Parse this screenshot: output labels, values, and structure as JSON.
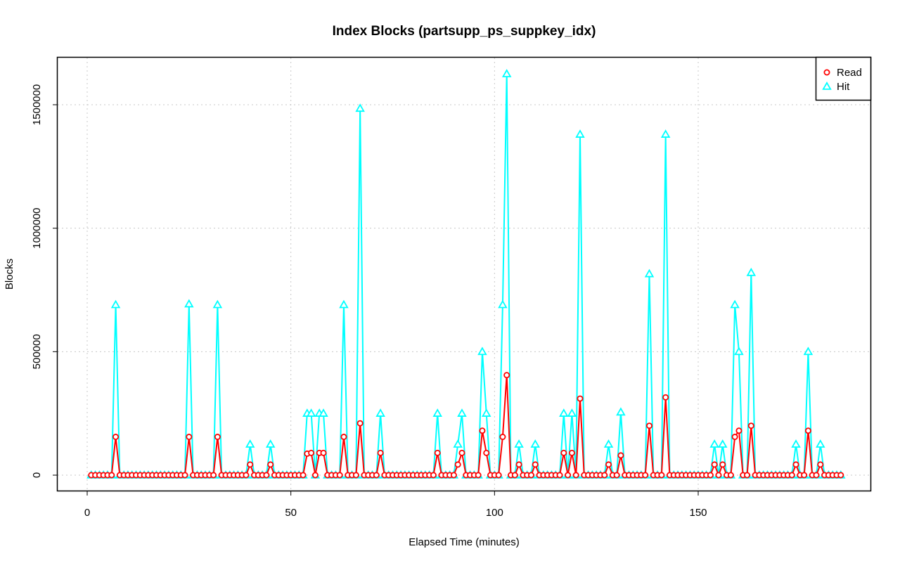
{
  "chart_data": {
    "type": "line",
    "title": "Index Blocks (partsupp_ps_suppkey_idx)",
    "xlabel": "Elapsed Time (minutes)",
    "ylabel": "Blocks",
    "xlim": [
      0,
      185
    ],
    "ylim": [
      0,
      1620000
    ],
    "xticks": [
      0,
      50,
      100,
      150
    ],
    "yticks": [
      0,
      500000,
      1000000,
      1500000
    ],
    "xtick_labels": [
      "0",
      "50",
      "100",
      "150"
    ],
    "ytick_labels": [
      "0",
      "500000",
      "1000000",
      "1500000"
    ],
    "grid": true,
    "legend": {
      "placement": "top-right",
      "entries": [
        {
          "name": "Read",
          "marker": "circle",
          "color": "#ff0000"
        },
        {
          "name": "Hit",
          "marker": "triangle",
          "color": "#00ffff"
        }
      ]
    },
    "x_start": 1,
    "x_end": 185,
    "series": [
      {
        "name": "Read",
        "color": "#ff0000",
        "marker": "circle",
        "default": 0,
        "points": [
          [
            7,
            155000
          ],
          [
            25,
            155000
          ],
          [
            32,
            155000
          ],
          [
            40,
            43000
          ],
          [
            45,
            43000
          ],
          [
            54,
            87000
          ],
          [
            55,
            90000
          ],
          [
            57,
            90000
          ],
          [
            58,
            90000
          ],
          [
            63,
            155000
          ],
          [
            67,
            210000
          ],
          [
            72,
            90000
          ],
          [
            86,
            90000
          ],
          [
            91,
            43000
          ],
          [
            92,
            90000
          ],
          [
            97,
            180000
          ],
          [
            98,
            90000
          ],
          [
            102,
            155000
          ],
          [
            103,
            405000
          ],
          [
            106,
            43000
          ],
          [
            110,
            43000
          ],
          [
            117,
            90000
          ],
          [
            119,
            90000
          ],
          [
            121,
            310000
          ],
          [
            128,
            43000
          ],
          [
            131,
            80000
          ],
          [
            138,
            200000
          ],
          [
            142,
            315000
          ],
          [
            154,
            43000
          ],
          [
            156,
            43000
          ],
          [
            159,
            155000
          ],
          [
            160,
            180000
          ],
          [
            163,
            200000
          ],
          [
            174,
            43000
          ],
          [
            177,
            180000
          ],
          [
            180,
            43000
          ]
        ]
      },
      {
        "name": "Hit",
        "color": "#00ffff",
        "marker": "triangle",
        "default": 0,
        "points": [
          [
            7,
            690000
          ],
          [
            25,
            693000
          ],
          [
            32,
            690000
          ],
          [
            40,
            125000
          ],
          [
            45,
            125000
          ],
          [
            54,
            250000
          ],
          [
            55,
            250000
          ],
          [
            57,
            250000
          ],
          [
            58,
            250000
          ],
          [
            63,
            690000
          ],
          [
            67,
            1485000
          ],
          [
            72,
            250000
          ],
          [
            86,
            250000
          ],
          [
            91,
            125000
          ],
          [
            92,
            250000
          ],
          [
            97,
            500000
          ],
          [
            98,
            250000
          ],
          [
            102,
            690000
          ],
          [
            103,
            1625000
          ],
          [
            106,
            125000
          ],
          [
            110,
            125000
          ],
          [
            117,
            250000
          ],
          [
            119,
            250000
          ],
          [
            121,
            1380000
          ],
          [
            128,
            125000
          ],
          [
            131,
            255000
          ],
          [
            138,
            815000
          ],
          [
            142,
            1380000
          ],
          [
            154,
            125000
          ],
          [
            156,
            125000
          ],
          [
            159,
            690000
          ],
          [
            160,
            500000
          ],
          [
            163,
            820000
          ],
          [
            174,
            125000
          ],
          [
            177,
            500000
          ],
          [
            180,
            125000
          ]
        ]
      }
    ]
  }
}
